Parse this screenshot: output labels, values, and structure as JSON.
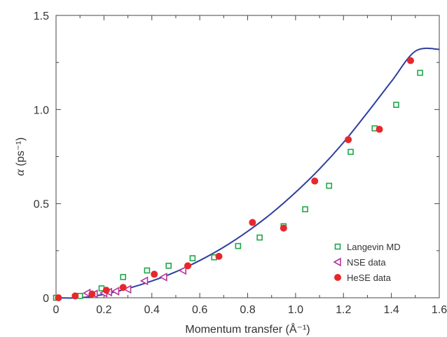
{
  "chart_data": {
    "type": "scatter",
    "xlabel": "Momentum transfer (Å⁻¹)",
    "ylabel_symbol": "α",
    "ylabel_unit": " (ps⁻¹)",
    "xlim": [
      0,
      1.6
    ],
    "ylim": [
      0,
      1.5
    ],
    "xticks": [
      0,
      0.2,
      0.4,
      0.6,
      0.8,
      1.0,
      1.2,
      1.4,
      1.6
    ],
    "xtick_labels": [
      "0",
      "0.2",
      "0.4",
      "0.6",
      "0.8",
      "1.0",
      "1.2",
      "1.4",
      "1.6"
    ],
    "yticks": [
      0,
      0.5,
      1.0,
      1.5
    ],
    "ytick_labels": [
      "0",
      "0.5",
      "1.0",
      "1.5"
    ],
    "grid": false,
    "legend_position": "bottom-right",
    "series": [
      {
        "name": "Langevin MD",
        "marker": "open-square",
        "color": "#1fa64a",
        "points": [
          [
            0.0,
            0.0
          ],
          [
            0.1,
            0.01
          ],
          [
            0.19,
            0.05
          ],
          [
            0.28,
            0.11
          ],
          [
            0.38,
            0.145
          ],
          [
            0.47,
            0.17
          ],
          [
            0.57,
            0.21
          ],
          [
            0.66,
            0.215
          ],
          [
            0.76,
            0.275
          ],
          [
            0.85,
            0.32
          ],
          [
            0.95,
            0.38
          ],
          [
            1.04,
            0.47
          ],
          [
            1.14,
            0.595
          ],
          [
            1.23,
            0.775
          ],
          [
            1.33,
            0.9
          ],
          [
            1.42,
            1.025
          ],
          [
            1.52,
            1.195
          ]
        ]
      },
      {
        "name": "NSE data",
        "marker": "open-triangle-left",
        "color": "#b6359c",
        "points": [
          [
            0.13,
            0.025
          ],
          [
            0.16,
            0.02
          ],
          [
            0.2,
            0.025
          ],
          [
            0.22,
            0.03
          ],
          [
            0.25,
            0.035
          ],
          [
            0.3,
            0.045
          ],
          [
            0.37,
            0.09
          ],
          [
            0.45,
            0.11
          ],
          [
            0.53,
            0.145
          ]
        ]
      },
      {
        "name": "HeSE data",
        "marker": "filled-circle",
        "color": "#e8272b",
        "points": [
          [
            0.01,
            0.0
          ],
          [
            0.08,
            0.01
          ],
          [
            0.15,
            0.02
          ],
          [
            0.21,
            0.04
          ],
          [
            0.28,
            0.055
          ],
          [
            0.41,
            0.125
          ],
          [
            0.55,
            0.17
          ],
          [
            0.68,
            0.22
          ],
          [
            0.82,
            0.4
          ],
          [
            0.95,
            0.37
          ],
          [
            1.08,
            0.62
          ],
          [
            1.22,
            0.84
          ],
          [
            1.35,
            0.895
          ],
          [
            1.48,
            1.26
          ]
        ]
      }
    ],
    "fit_curve": {
      "color": "#2e3f9e",
      "points": [
        [
          0.0,
          0.0
        ],
        [
          0.1,
          0.0
        ],
        [
          0.2,
          0.018
        ],
        [
          0.3,
          0.049
        ],
        [
          0.4,
          0.089
        ],
        [
          0.5,
          0.138
        ],
        [
          0.6,
          0.198
        ],
        [
          0.7,
          0.269
        ],
        [
          0.8,
          0.353
        ],
        [
          0.9,
          0.449
        ],
        [
          1.0,
          0.56
        ],
        [
          1.1,
          0.684
        ],
        [
          1.2,
          0.825
        ],
        [
          1.3,
          0.984
        ],
        [
          1.4,
          1.149
        ],
        [
          1.5,
          1.31
        ],
        [
          1.6,
          1.32
        ]
      ]
    }
  }
}
